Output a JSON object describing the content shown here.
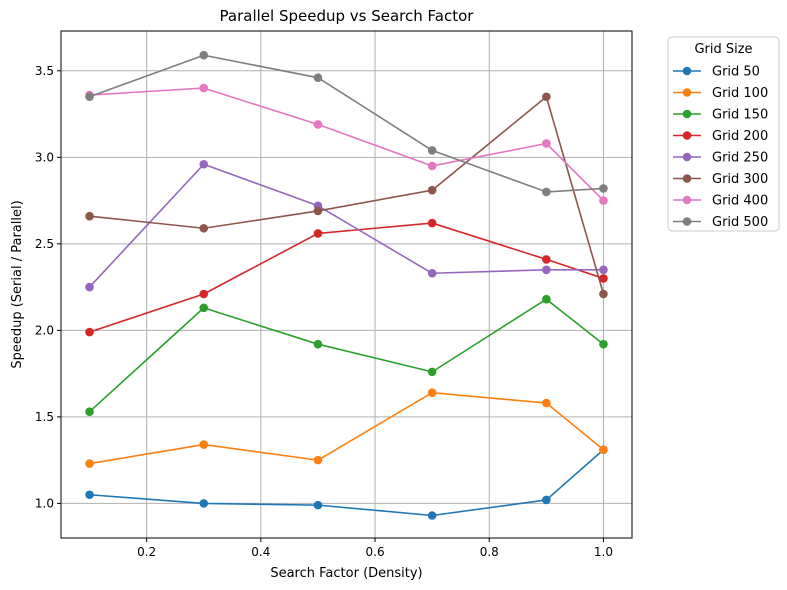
{
  "chart_data": {
    "type": "line",
    "title": "Parallel Speedup vs Search Factor",
    "xlabel": "Search Factor (Density)",
    "ylabel": "Speedup (Serial / Parallel)",
    "xlim": [
      0.05,
      1.05
    ],
    "ylim": [
      0.8,
      3.73
    ],
    "xticks": [
      0.2,
      0.4,
      0.6,
      0.8,
      1.0
    ],
    "xtick_labels": [
      "0.2",
      "0.4",
      "0.6",
      "0.8",
      "1.0"
    ],
    "yticks": [
      1.0,
      1.5,
      2.0,
      2.5,
      3.0,
      3.5
    ],
    "ytick_labels": [
      "1.0",
      "1.5",
      "2.0",
      "2.5",
      "3.0",
      "3.5"
    ],
    "grid": true,
    "x": [
      0.1,
      0.3,
      0.5,
      0.7,
      0.9,
      1.0
    ],
    "legend": {
      "title": "Grid Size",
      "placement": "outside-right"
    },
    "series": [
      {
        "name": "Grid 50",
        "color": "#1f77b4",
        "values": [
          1.05,
          1.0,
          0.99,
          0.93,
          1.02,
          1.31
        ]
      },
      {
        "name": "Grid 100",
        "color": "#ff7f0e",
        "values": [
          1.23,
          1.34,
          1.25,
          1.64,
          1.58,
          1.31
        ]
      },
      {
        "name": "Grid 150",
        "color": "#2ca02c",
        "values": [
          1.53,
          2.13,
          1.92,
          1.76,
          2.18,
          1.92
        ]
      },
      {
        "name": "Grid 200",
        "color": "#d62728",
        "values": [
          1.99,
          2.21,
          2.56,
          2.62,
          2.41,
          2.3
        ]
      },
      {
        "name": "Grid 250",
        "color": "#9467bd",
        "values": [
          2.25,
          2.96,
          2.72,
          2.33,
          2.35,
          2.35
        ]
      },
      {
        "name": "Grid 300",
        "color": "#8c564b",
        "values": [
          2.66,
          2.59,
          2.69,
          2.81,
          3.35,
          2.21
        ]
      },
      {
        "name": "Grid 400",
        "color": "#e377c2",
        "values": [
          3.36,
          3.4,
          3.19,
          2.95,
          3.08,
          2.75
        ]
      },
      {
        "name": "Grid 500",
        "color": "#7f7f7f",
        "values": [
          3.35,
          3.59,
          3.46,
          3.04,
          2.8,
          2.82
        ]
      }
    ]
  }
}
